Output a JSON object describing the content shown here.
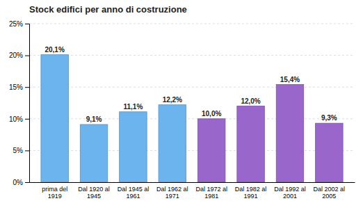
{
  "chart_data": {
    "type": "bar",
    "title": "Stock edifici per anno di costruzione",
    "categories": [
      "prima del\n1919",
      "Dal 1920 al\n1945",
      "Dal 1945 al\n1961",
      "Dal 1962 al\n1971",
      "Dal 1972 al\n1981",
      "Dal 1982 al\n1991",
      "Dal 1992 al\n2001",
      "Dal 2002 al\n2005"
    ],
    "values": [
      20.1,
      9.1,
      11.1,
      12.2,
      10.0,
      12.0,
      15.4,
      9.3
    ],
    "value_labels": [
      "20,1%",
      "9,1%",
      "11,1%",
      "12,2%",
      "10,0%",
      "12,0%",
      "15,4%",
      "9,3%"
    ],
    "data_labels": true,
    "colors": [
      "#6CB4EE",
      "#6CB4EE",
      "#6CB4EE",
      "#6CB4EE",
      "#9966CC",
      "#9966CC",
      "#9966CC",
      "#9966CC"
    ],
    "ylim": [
      0,
      25
    ],
    "yticks": [
      {
        "value": 0,
        "label": "0%"
      },
      {
        "value": 5,
        "label": "5%"
      },
      {
        "value": 10,
        "label": "10%"
      },
      {
        "value": 15,
        "label": "15%"
      },
      {
        "value": 20,
        "label": "20%"
      },
      {
        "value": 25,
        "label": "25%"
      }
    ],
    "grid": true
  }
}
